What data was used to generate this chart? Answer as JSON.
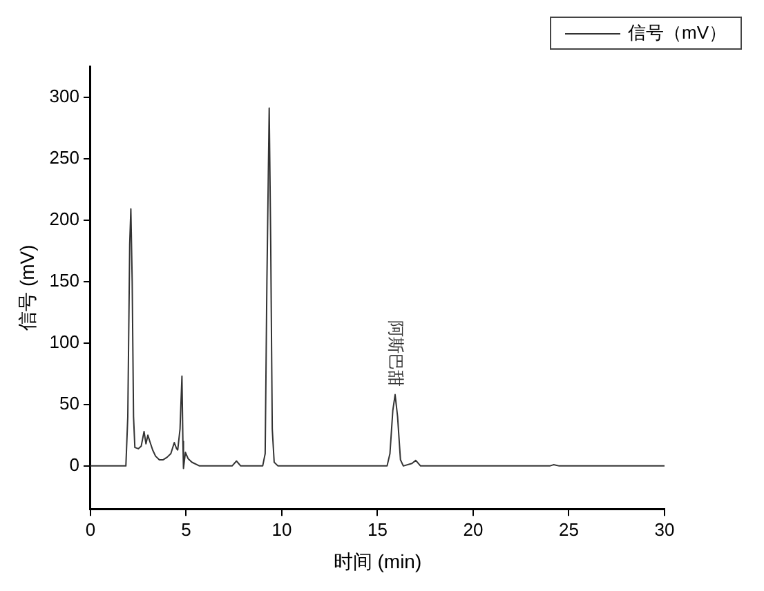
{
  "chart_data": {
    "type": "line",
    "xlabel": "时间 (min)",
    "ylabel": "信号 (mV)",
    "xlim": [
      0,
      30
    ],
    "xticks": [
      0,
      5,
      10,
      15,
      20,
      25,
      30
    ],
    "ylim": [
      -35,
      325
    ],
    "yticks": [
      0,
      50,
      100,
      150,
      200,
      250,
      300
    ],
    "grid": false,
    "legend": "top right",
    "marker": "none",
    "line_style": "solid",
    "annotations": [
      {
        "text": "阿斯巴甜",
        "x": 15.92,
        "y": 58
      }
    ],
    "series": [
      {
        "name": "信号（mV）",
        "color": "#333333",
        "x": [
          0,
          1.85,
          1.95,
          2.05,
          2.11,
          2.18,
          2.25,
          2.32,
          2.5,
          2.65,
          2.8,
          2.9,
          3.0,
          3.1,
          3.25,
          3.4,
          3.6,
          3.8,
          4.0,
          4.2,
          4.38,
          4.5,
          4.56,
          4.68,
          4.78,
          4.83,
          4.86,
          4.96,
          5.1,
          5.3,
          5.7,
          7.4,
          7.63,
          7.85,
          9.0,
          9.13,
          9.22,
          9.34,
          9.42,
          9.5,
          9.6,
          9.8,
          15.5,
          15.65,
          15.8,
          15.92,
          16.05,
          16.2,
          16.35,
          16.8,
          17.0,
          17.25,
          24,
          24.2,
          24.5,
          30
        ],
        "values": [
          0,
          0,
          40,
          180,
          209,
          150,
          40,
          15,
          14,
          16,
          28,
          18,
          25,
          20,
          13,
          8,
          5,
          5,
          7,
          10,
          19,
          14,
          13,
          30,
          73,
          20,
          -2,
          11,
          6,
          3,
          0,
          0,
          4,
          0,
          0,
          10,
          150,
          291,
          180,
          30,
          3,
          0,
          0,
          10,
          45,
          58,
          40,
          5,
          0,
          2,
          4.5,
          0,
          0,
          1,
          0,
          0
        ]
      }
    ]
  }
}
